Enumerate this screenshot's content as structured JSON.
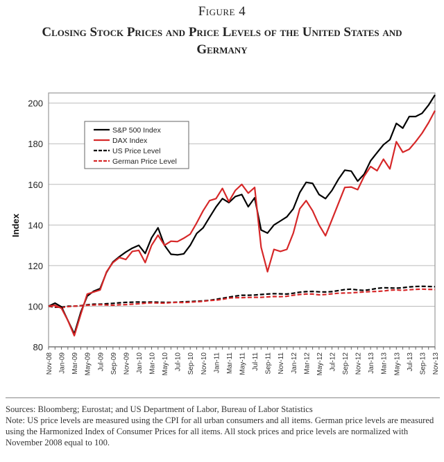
{
  "figure_label": "Figure 4",
  "chart_data": {
    "type": "line",
    "title": "Closing Stock Prices and Price Levels of the United States and Germany",
    "xlabel": "",
    "ylabel": "Index",
    "ylim": [
      80,
      205
    ],
    "y_ticks": [
      80,
      100,
      120,
      140,
      160,
      180,
      200
    ],
    "grid": true,
    "legend_position": "top-left",
    "x_start": "Nov-08",
    "x_end": "Nov-13",
    "x_frequency": "monthly",
    "x_tick_labels": [
      "Nov-08",
      "Jan-09",
      "Mar-09",
      "May-09",
      "Jul-09",
      "Sep-09",
      "Nov-09",
      "Jan-10",
      "Mar-10",
      "May-10",
      "Jul-10",
      "Sep-10",
      "Nov-10",
      "Jan-11",
      "Mar-11",
      "May-11",
      "Jul-11",
      "Sep-11",
      "Nov-11",
      "Jan-12",
      "Mar-12",
      "May-12",
      "Jul-12",
      "Sep-12",
      "Nov-12",
      "Jan-13",
      "Mar-13",
      "May-13",
      "Jul-13",
      "Sep-13",
      "Nov-13"
    ],
    "series": [
      {
        "name": "S&P 500 Index",
        "color": "#000000",
        "dashed": false,
        "values": [
          100,
          101.5,
          99.7,
          93,
          86.4,
          97,
          105,
          107.4,
          108.7,
          116.7,
          121.8,
          124.4,
          126.7,
          128.6,
          130,
          126,
          133.7,
          138.6,
          130,
          125.6,
          125.3,
          125.8,
          130,
          135.8,
          138.6,
          143.8,
          148.9,
          153,
          151,
          154,
          155,
          149,
          153.4,
          137.5,
          136,
          140,
          142,
          144,
          148,
          156,
          161,
          160.5,
          155,
          153,
          157,
          162.5,
          167,
          166.5,
          161.6,
          165,
          171.6,
          175.6,
          179.5,
          182,
          190,
          187.7,
          193.4,
          193.4,
          195,
          199,
          204
        ]
      },
      {
        "name": "DAX Index",
        "color": "#d62728",
        "dashed": false,
        "values": [
          100,
          100.5,
          99,
          93,
          85.5,
          96,
          106,
          107,
          108,
          117,
          121.5,
          124,
          123,
          127,
          127.5,
          121.5,
          130,
          135,
          130,
          132,
          131.8,
          133.5,
          135.5,
          141,
          147,
          152,
          153,
          158,
          151.5,
          157,
          160,
          155.7,
          158.5,
          129,
          117,
          128,
          127,
          128,
          136,
          148,
          152,
          147,
          140,
          134.7,
          142.6,
          150.6,
          158.5,
          158.7,
          157.4,
          164,
          168.75,
          166.7,
          172.4,
          167.6,
          181,
          175.8,
          177.3,
          181,
          185.2,
          190.3,
          196.3
        ]
      },
      {
        "name": "US Price Level",
        "color": "#000000",
        "dashed": true,
        "values": [
          100,
          99.5,
          99.5,
          100,
          100,
          100.3,
          100.7,
          101,
          101,
          101.2,
          101.4,
          101.7,
          101.9,
          102,
          102.1,
          102,
          102.1,
          102,
          101.9,
          101.9,
          102,
          102.2,
          102.3,
          102.5,
          102.6,
          102.9,
          103.4,
          103.9,
          104.5,
          105,
          105.4,
          105.4,
          105.5,
          105.8,
          106,
          106.2,
          106.1,
          106,
          106.4,
          106.9,
          107.2,
          107.3,
          107.1,
          107,
          107.2,
          107.7,
          108.2,
          108.4,
          108,
          107.8,
          108.2,
          108.8,
          109.1,
          109,
          108.9,
          109.1,
          109.5,
          109.7,
          109.8,
          109.7,
          109.6
        ]
      },
      {
        "name": "German Price Level",
        "color": "#d62728",
        "dashed": true,
        "values": [
          100,
          99.8,
          99.2,
          99.8,
          100,
          100.2,
          100.5,
          100.6,
          100.8,
          100.6,
          100.5,
          100.7,
          100.8,
          101,
          101.2,
          101.5,
          101.7,
          101.6,
          101.5,
          101.8,
          101.9,
          101.8,
          102,
          102.2,
          102.4,
          102.8,
          103,
          103.4,
          104,
          104.2,
          104.2,
          104.3,
          104.4,
          104.4,
          104.6,
          104.8,
          104.7,
          104.9,
          105.4,
          105.8,
          106,
          106,
          105.6,
          105.8,
          106.1,
          106.4,
          106.5,
          106.6,
          106.8,
          107,
          107.2,
          107.3,
          107.5,
          107.9,
          108,
          107.8,
          108.1,
          108.3,
          108.4,
          108.3,
          108.2
        ]
      }
    ]
  },
  "footer": {
    "sources": "Sources: Bloomberg; Eurostat; and US Department of Labor, Bureau of Labor Statistics",
    "note": "Note: US price levels are measured using the CPI for all urban consumers and all items. German price levels are measured using the Harmonized Index of Consumer Prices for all items. All stock prices and price levels are normalized with November 2008 equal to 100."
  }
}
